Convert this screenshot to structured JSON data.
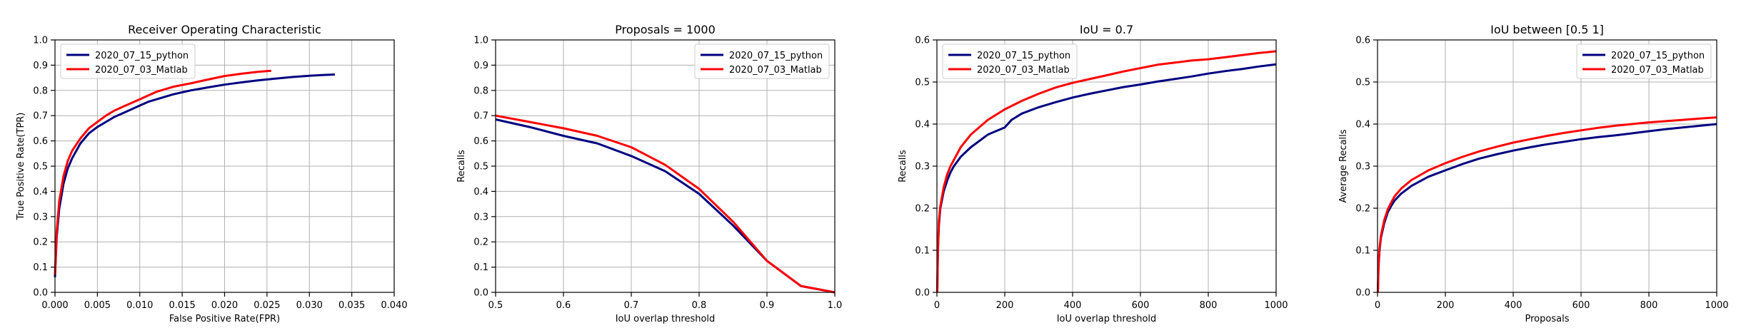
{
  "figure": {
    "background": "#ffffff",
    "series_colors": [
      "#000080",
      "#ff0000"
    ]
  },
  "chart_data": [
    {
      "type": "line",
      "title": "Receiver Operating Characteristic",
      "xlabel": "False Positive Rate(FPR)",
      "ylabel": "True Positive Rate(TPR)",
      "xlim": [
        0,
        0.04
      ],
      "ylim": [
        0,
        1.0
      ],
      "xticks": [
        0,
        0.005,
        0.01,
        0.015,
        0.02,
        0.025,
        0.03,
        0.035,
        0.04
      ],
      "xtick_labels": [
        "0.000",
        "0.005",
        "0.010",
        "0.015",
        "0.020",
        "0.025",
        "0.030",
        "0.035",
        "0.040"
      ],
      "yticks": [
        0,
        0.1,
        0.2,
        0.3,
        0.4,
        0.5,
        0.6,
        0.7,
        0.8,
        0.9,
        1.0
      ],
      "ytick_labels": [
        "0.0",
        "0.1",
        "0.2",
        "0.3",
        "0.4",
        "0.5",
        "0.6",
        "0.7",
        "0.8",
        "0.9",
        "1.0"
      ],
      "grid": true,
      "legend": "upper-left",
      "series": [
        {
          "name": "2020_07_15_python",
          "color": "#000080",
          "x": [
            0,
            0.0002,
            0.0005,
            0.001,
            0.0015,
            0.002,
            0.003,
            0.004,
            0.005,
            0.006,
            0.007,
            0.008,
            0.009,
            0.01,
            0.011,
            0.012,
            0.014,
            0.016,
            0.018,
            0.02,
            0.022,
            0.024,
            0.026,
            0.028,
            0.03,
            0.0315,
            0.033
          ],
          "y": [
            0.06,
            0.22,
            0.33,
            0.43,
            0.49,
            0.53,
            0.59,
            0.63,
            0.655,
            0.675,
            0.695,
            0.71,
            0.725,
            0.74,
            0.755,
            0.765,
            0.785,
            0.8,
            0.812,
            0.823,
            0.832,
            0.84,
            0.847,
            0.853,
            0.858,
            0.861,
            0.863
          ]
        },
        {
          "name": "2020_07_03_Matlab",
          "color": "#ff0000",
          "x": [
            0,
            0.0002,
            0.0005,
            0.001,
            0.0015,
            0.002,
            0.003,
            0.004,
            0.005,
            0.006,
            0.007,
            0.008,
            0.009,
            0.01,
            0.011,
            0.012,
            0.013,
            0.014,
            0.016,
            0.018,
            0.02,
            0.022,
            0.024,
            0.0255
          ],
          "y": [
            0.07,
            0.24,
            0.36,
            0.46,
            0.52,
            0.56,
            0.61,
            0.65,
            0.675,
            0.7,
            0.72,
            0.735,
            0.75,
            0.765,
            0.78,
            0.795,
            0.805,
            0.815,
            0.828,
            0.843,
            0.857,
            0.866,
            0.874,
            0.878
          ]
        }
      ]
    },
    {
      "type": "line",
      "title": "Proposals = 1000",
      "xlabel": "IoU overlap threshold",
      "ylabel": "Recalls",
      "xlim": [
        0.5,
        1.0
      ],
      "ylim": [
        0,
        1.0
      ],
      "xticks": [
        0.5,
        0.6,
        0.7,
        0.8,
        0.9,
        1.0
      ],
      "xtick_labels": [
        "0.5",
        "0.6",
        "0.7",
        "0.8",
        "0.9",
        "1.0"
      ],
      "yticks": [
        0,
        0.1,
        0.2,
        0.3,
        0.4,
        0.5,
        0.6,
        0.7,
        0.8,
        0.9,
        1.0
      ],
      "ytick_labels": [
        "0.0",
        "0.1",
        "0.2",
        "0.3",
        "0.4",
        "0.5",
        "0.6",
        "0.7",
        "0.8",
        "0.9",
        "1.0"
      ],
      "grid": true,
      "legend": "upper-right",
      "series": [
        {
          "name": "2020_07_15_python",
          "color": "#000080",
          "x": [
            0.5,
            0.55,
            0.6,
            0.65,
            0.7,
            0.75,
            0.8,
            0.85,
            0.9,
            0.95,
            1.0
          ],
          "y": [
            0.685,
            0.655,
            0.62,
            0.59,
            0.54,
            0.48,
            0.39,
            0.265,
            0.125,
            0.025,
            0.0
          ]
        },
        {
          "name": "2020_07_03_Matlab",
          "color": "#ff0000",
          "x": [
            0.5,
            0.55,
            0.6,
            0.65,
            0.7,
            0.75,
            0.8,
            0.85,
            0.9,
            0.95,
            1.0
          ],
          "y": [
            0.7,
            0.675,
            0.65,
            0.62,
            0.575,
            0.505,
            0.41,
            0.28,
            0.125,
            0.025,
            0.0
          ]
        }
      ]
    },
    {
      "type": "line",
      "title": "IoU = 0.7",
      "xlabel": "IoU overlap threshold",
      "ylabel": "Recalls",
      "xlim": [
        0,
        1000
      ],
      "ylim": [
        0,
        0.6
      ],
      "xticks": [
        0,
        200,
        400,
        600,
        800,
        1000
      ],
      "xtick_labels": [
        "0",
        "200",
        "400",
        "600",
        "800",
        "1000"
      ],
      "yticks": [
        0,
        0.1,
        0.2,
        0.3,
        0.4,
        0.5,
        0.6
      ],
      "ytick_labels": [
        "0.0",
        "0.1",
        "0.2",
        "0.3",
        "0.4",
        "0.5",
        "0.6"
      ],
      "grid": true,
      "legend": "upper-left",
      "series": [
        {
          "name": "2020_07_15_python",
          "color": "#000080",
          "x": [
            1,
            3,
            6,
            10,
            20,
            30,
            40,
            50,
            70,
            100,
            150,
            200,
            220,
            250,
            300,
            350,
            400,
            450,
            500,
            550,
            600,
            650,
            700,
            750,
            800,
            850,
            900,
            950,
            1000
          ],
          "y": [
            0.0,
            0.1,
            0.16,
            0.2,
            0.24,
            0.265,
            0.285,
            0.3,
            0.322,
            0.345,
            0.375,
            0.392,
            0.41,
            0.425,
            0.44,
            0.452,
            0.463,
            0.472,
            0.48,
            0.488,
            0.494,
            0.501,
            0.507,
            0.513,
            0.52,
            0.526,
            0.531,
            0.537,
            0.542
          ]
        },
        {
          "name": "2020_07_03_Matlab",
          "color": "#ff0000",
          "x": [
            1,
            3,
            6,
            10,
            20,
            30,
            40,
            50,
            70,
            100,
            150,
            200,
            250,
            300,
            350,
            400,
            450,
            500,
            550,
            600,
            650,
            700,
            750,
            800,
            850,
            900,
            950,
            1000
          ],
          "y": [
            0.0,
            0.1,
            0.17,
            0.205,
            0.25,
            0.28,
            0.3,
            0.315,
            0.345,
            0.375,
            0.41,
            0.435,
            0.455,
            0.472,
            0.487,
            0.498,
            0.507,
            0.516,
            0.525,
            0.533,
            0.541,
            0.546,
            0.551,
            0.554,
            0.559,
            0.564,
            0.569,
            0.573
          ]
        }
      ]
    },
    {
      "type": "line",
      "title": "IoU between [0.5 1]",
      "xlabel": "Proposals",
      "ylabel": "Average Recalls",
      "xlim": [
        0,
        1000
      ],
      "ylim": [
        0,
        0.6
      ],
      "xticks": [
        0,
        200,
        400,
        600,
        800,
        1000
      ],
      "xtick_labels": [
        "0",
        "200",
        "400",
        "600",
        "800",
        "1000"
      ],
      "yticks": [
        0,
        0.1,
        0.2,
        0.3,
        0.4,
        0.5,
        0.6
      ],
      "ytick_labels": [
        "0.0",
        "0.1",
        "0.2",
        "0.3",
        "0.4",
        "0.5",
        "0.6"
      ],
      "grid": true,
      "legend": "upper-right",
      "series": [
        {
          "name": "2020_07_15_python",
          "color": "#000080",
          "x": [
            1,
            3,
            6,
            10,
            20,
            30,
            40,
            50,
            70,
            100,
            150,
            200,
            250,
            300,
            350,
            400,
            450,
            500,
            550,
            600,
            650,
            700,
            750,
            800,
            850,
            900,
            950,
            1000
          ],
          "y": [
            0.0,
            0.06,
            0.1,
            0.13,
            0.165,
            0.19,
            0.205,
            0.218,
            0.235,
            0.253,
            0.275,
            0.29,
            0.305,
            0.318,
            0.328,
            0.337,
            0.345,
            0.352,
            0.358,
            0.364,
            0.369,
            0.373,
            0.378,
            0.383,
            0.388,
            0.392,
            0.396,
            0.4
          ]
        },
        {
          "name": "2020_07_03_Matlab",
          "color": "#ff0000",
          "x": [
            1,
            3,
            6,
            10,
            20,
            30,
            40,
            50,
            70,
            100,
            150,
            200,
            250,
            300,
            350,
            400,
            450,
            500,
            550,
            600,
            650,
            700,
            750,
            800,
            850,
            900,
            950,
            1000
          ],
          "y": [
            0.0,
            0.065,
            0.105,
            0.135,
            0.172,
            0.197,
            0.213,
            0.228,
            0.247,
            0.267,
            0.29,
            0.307,
            0.322,
            0.335,
            0.346,
            0.356,
            0.364,
            0.372,
            0.379,
            0.385,
            0.391,
            0.396,
            0.4,
            0.404,
            0.407,
            0.41,
            0.413,
            0.416
          ]
        }
      ]
    }
  ]
}
